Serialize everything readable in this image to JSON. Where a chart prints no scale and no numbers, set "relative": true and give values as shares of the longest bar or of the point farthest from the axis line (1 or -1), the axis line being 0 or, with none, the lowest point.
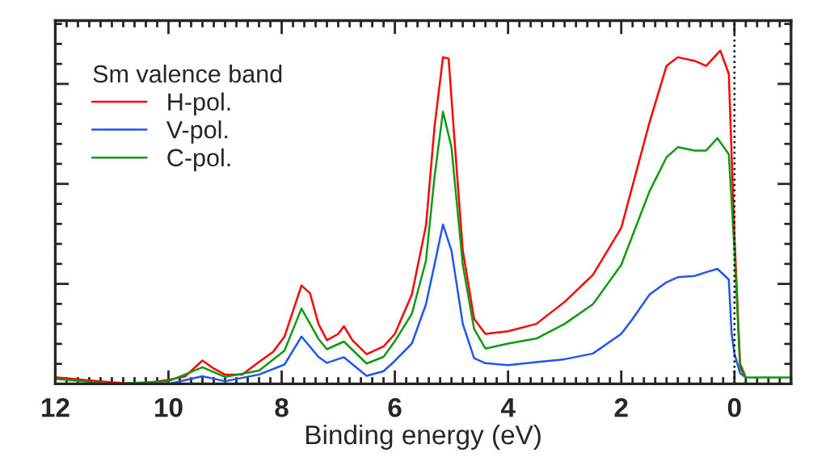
{
  "chart_data": {
    "type": "line",
    "relative": true,
    "xlabel": "Binding energy (eV)",
    "legend_title": "Sm valence band",
    "legend": "top left",
    "xlim": [
      12,
      -1
    ],
    "xticks": [
      12,
      10,
      8,
      6,
      4,
      2,
      0
    ],
    "tick_labels": "x",
    "grid": false,
    "marker": "none",
    "line_style": "solid",
    "ref_lines": [
      {
        "axis": "x",
        "value": 0,
        "label": null,
        "color": "#000000",
        "line_style": "dotted"
      }
    ],
    "series": [
      {
        "name": "H-pol.",
        "color": "#ff0000",
        "x": [
          12,
          11.5,
          11,
          10.5,
          10,
          9.7,
          9.4,
          9.2,
          9.0,
          8.7,
          8.4,
          8.15,
          7.95,
          7.65,
          7.5,
          7.35,
          7.2,
          7.0,
          6.9,
          6.75,
          6.5,
          6.2,
          6.0,
          5.7,
          5.45,
          5.3,
          5.15,
          5.05,
          4.95,
          4.8,
          4.6,
          4.4,
          4.0,
          3.5,
          3.0,
          2.5,
          2.0,
          1.5,
          1.2,
          1.0,
          0.7,
          0.5,
          0.25,
          0.1,
          0.0,
          -0.1,
          -0.2
        ],
        "values": [
          0.02,
          0.012,
          0.005,
          0.0,
          0.012,
          0.023,
          0.07,
          0.046,
          0.028,
          0.028,
          0.066,
          0.096,
          0.142,
          0.295,
          0.272,
          0.18,
          0.131,
          0.15,
          0.173,
          0.131,
          0.089,
          0.112,
          0.15,
          0.268,
          0.475,
          0.77,
          0.98,
          0.976,
          0.74,
          0.4,
          0.195,
          0.15,
          0.158,
          0.18,
          0.246,
          0.327,
          0.468,
          0.785,
          0.954,
          0.98,
          0.969,
          0.954,
          1.0,
          0.93,
          0.445,
          0.06,
          0.019
        ]
      },
      {
        "name": "V-pol.",
        "color": "#2255ee",
        "x": [
          12,
          11,
          10,
          9.4,
          9.0,
          8.4,
          7.95,
          7.65,
          7.35,
          7.2,
          6.9,
          6.5,
          6.2,
          6.0,
          5.7,
          5.45,
          5.3,
          5.15,
          5.0,
          4.8,
          4.6,
          4.4,
          4.0,
          3.5,
          3.0,
          2.5,
          2.0,
          1.8,
          1.5,
          1.2,
          1.0,
          0.7,
          0.5,
          0.3,
          0.1,
          0.05,
          0.0,
          -0.1,
          -0.2
        ],
        "values": [
          0.0,
          0.0,
          0.0,
          0.023,
          0.008,
          0.028,
          0.058,
          0.142,
          0.081,
          0.063,
          0.08,
          0.024,
          0.038,
          0.069,
          0.121,
          0.239,
          0.357,
          0.478,
          0.4,
          0.18,
          0.077,
          0.062,
          0.056,
          0.065,
          0.074,
          0.091,
          0.15,
          0.195,
          0.268,
          0.305,
          0.32,
          0.324,
          0.335,
          0.345,
          0.313,
          0.15,
          0.091,
          0.032,
          0.019
        ]
      },
      {
        "name": "C-pol.",
        "color": "#119911",
        "x": [
          12,
          11,
          10,
          9.4,
          9.0,
          8.4,
          7.95,
          7.65,
          7.35,
          7.2,
          6.9,
          6.5,
          6.2,
          6.0,
          5.7,
          5.45,
          5.3,
          5.15,
          5.0,
          4.8,
          4.6,
          4.4,
          4.0,
          3.5,
          3.0,
          2.5,
          2.0,
          1.5,
          1.2,
          1.0,
          0.7,
          0.5,
          0.3,
          0.1,
          0.0,
          -0.1,
          -0.2,
          -1.0
        ],
        "values": [
          0.015,
          0.0,
          0.008,
          0.05,
          0.021,
          0.04,
          0.1,
          0.226,
          0.135,
          0.104,
          0.127,
          0.061,
          0.081,
          0.128,
          0.21,
          0.37,
          0.62,
          0.817,
          0.71,
          0.357,
          0.165,
          0.106,
          0.121,
          0.136,
          0.18,
          0.239,
          0.357,
          0.578,
          0.68,
          0.71,
          0.7,
          0.7,
          0.737,
          0.689,
          0.4,
          0.047,
          0.019,
          0.019
        ]
      }
    ]
  }
}
